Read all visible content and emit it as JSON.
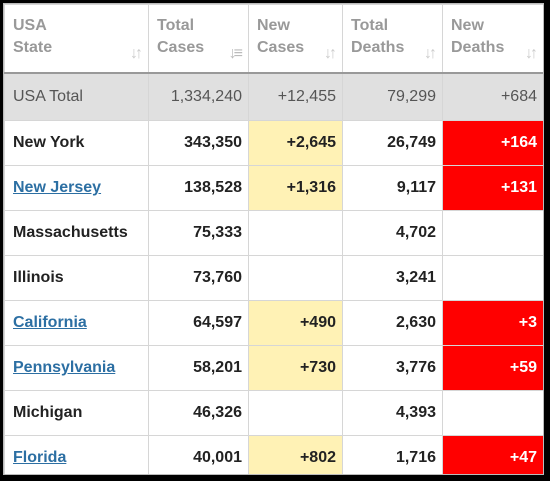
{
  "headers": [
    {
      "line1": "USA",
      "line2": "State"
    },
    {
      "line1": "Total",
      "line2": "Cases"
    },
    {
      "line1": "New",
      "line2": "Cases"
    },
    {
      "line1": "Total",
      "line2": "Deaths"
    },
    {
      "line1": "New",
      "line2": "Deaths"
    }
  ],
  "sort_icon": "↓↑",
  "total": {
    "state": "USA Total",
    "total_cases": "1,334,240",
    "new_cases": "+12,455",
    "total_deaths": "79,299",
    "new_deaths": "+684"
  },
  "rows": [
    {
      "state": "New York",
      "link": false,
      "total_cases": "343,350",
      "new_cases": "+2,645",
      "total_deaths": "26,749",
      "new_deaths": "+164"
    },
    {
      "state": "New Jersey",
      "link": true,
      "total_cases": "138,528",
      "new_cases": "+1,316",
      "total_deaths": "9,117",
      "new_deaths": "+131"
    },
    {
      "state": "Massachusetts",
      "link": false,
      "total_cases": "75,333",
      "new_cases": "",
      "total_deaths": "4,702",
      "new_deaths": ""
    },
    {
      "state": "Illinois",
      "link": false,
      "total_cases": "73,760",
      "new_cases": "",
      "total_deaths": "3,241",
      "new_deaths": ""
    },
    {
      "state": "California",
      "link": true,
      "total_cases": "64,597",
      "new_cases": "+490",
      "total_deaths": "2,630",
      "new_deaths": "+3"
    },
    {
      "state": "Pennsylvania",
      "link": true,
      "total_cases": "58,201",
      "new_cases": "+730",
      "total_deaths": "3,776",
      "new_deaths": "+59"
    },
    {
      "state": "Michigan",
      "link": false,
      "total_cases": "46,326",
      "new_cases": "",
      "total_deaths": "4,393",
      "new_deaths": ""
    },
    {
      "state": "Florida",
      "link": true,
      "total_cases": "40,001",
      "new_cases": "+802",
      "total_deaths": "1,716",
      "new_deaths": "+47"
    }
  ],
  "colors": {
    "new_cases_highlight": "#fff2b5",
    "new_deaths_highlight": "#ff0000",
    "link": "#2c6fa3",
    "total_row": "#e0e0e0"
  }
}
